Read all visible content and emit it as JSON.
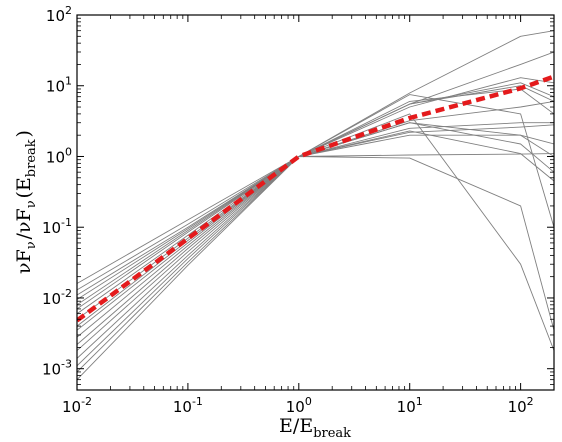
{
  "chart_data": {
    "type": "line",
    "xscale": "log",
    "yscale": "log",
    "xlim": [
      0.01,
      200
    ],
    "ylim": [
      0.0005,
      100
    ],
    "grid": false,
    "xlabel": "E/E_break",
    "ylabel": "νF_ν/νF_ν(E_break)",
    "x_ticks": [
      {
        "value": 0.01,
        "mantissa": "10",
        "exp": "-2"
      },
      {
        "value": 0.1,
        "mantissa": "10",
        "exp": "-1"
      },
      {
        "value": 1,
        "mantissa": "10",
        "exp": "0"
      },
      {
        "value": 10,
        "mantissa": "10",
        "exp": "1"
      },
      {
        "value": 100,
        "mantissa": "10",
        "exp": "2"
      }
    ],
    "y_ticks": [
      {
        "value": 0.001,
        "mantissa": "10",
        "exp": "-3"
      },
      {
        "value": 0.01,
        "mantissa": "10",
        "exp": "-2"
      },
      {
        "value": 0.1,
        "mantissa": "10",
        "exp": "-1"
      },
      {
        "value": 1,
        "mantissa": "10",
        "exp": "0"
      },
      {
        "value": 10,
        "mantissa": "10",
        "exp": "1"
      },
      {
        "value": 100,
        "mantissa": "10",
        "exp": "2"
      }
    ],
    "thin_line_color": "#808080",
    "series": [
      {
        "x": [
          0.01,
          0.1,
          1,
          10,
          100,
          200
        ],
        "y": [
          0.016,
          0.127,
          1,
          7.9,
          50,
          60
        ]
      },
      {
        "x": [
          0.01,
          0.1,
          1,
          10,
          100,
          200
        ],
        "y": [
          0.013,
          0.11,
          1,
          5.5,
          20,
          30
        ]
      },
      {
        "x": [
          0.01,
          0.1,
          1,
          10,
          100,
          200
        ],
        "y": [
          0.011,
          0.1,
          1,
          5,
          13,
          11
        ]
      },
      {
        "x": [
          0.01,
          0.1,
          1,
          10,
          100,
          200
        ],
        "y": [
          0.0095,
          0.095,
          1,
          5.5,
          11,
          7
        ]
      },
      {
        "x": [
          0.01,
          0.1,
          1,
          10,
          100,
          200
        ],
        "y": [
          0.008,
          0.09,
          1,
          5.5,
          10,
          6
        ]
      },
      {
        "x": [
          0.01,
          0.1,
          1,
          10,
          100,
          200
        ],
        "y": [
          0.007,
          0.085,
          1,
          6,
          9,
          4
        ]
      },
      {
        "x": [
          0.01,
          0.1,
          1,
          10,
          100,
          200
        ],
        "y": [
          0.006,
          0.077,
          1,
          7.5,
          4,
          0.1
        ]
      },
      {
        "x": [
          0.01,
          0.1,
          1,
          10,
          100,
          200
        ],
        "y": [
          0.005,
          0.07,
          1,
          3,
          2,
          1
        ]
      },
      {
        "x": [
          0.01,
          0.1,
          1,
          10,
          100,
          200
        ],
        "y": [
          0.004,
          0.065,
          1,
          3.2,
          5,
          6
        ]
      },
      {
        "x": [
          0.01,
          0.1,
          1,
          10,
          100,
          200
        ],
        "y": [
          0.0035,
          0.06,
          1,
          2.5,
          3,
          3
        ]
      },
      {
        "x": [
          0.01,
          0.1,
          1,
          10,
          100,
          200
        ],
        "y": [
          0.0028,
          0.055,
          1,
          2,
          2,
          1.5
        ]
      },
      {
        "x": [
          0.01,
          0.1,
          1,
          10,
          100,
          200
        ],
        "y": [
          0.0022,
          0.05,
          1,
          2.2,
          2.6,
          2.8
        ]
      },
      {
        "x": [
          0.01,
          0.1,
          1,
          10,
          100,
          200
        ],
        "y": [
          0.0018,
          0.045,
          1,
          1.05,
          1.08,
          1.1
        ]
      },
      {
        "x": [
          0.01,
          0.1,
          1,
          10,
          100,
          200
        ],
        "y": [
          0.0014,
          0.04,
          1,
          4,
          0.03,
          0.0018
        ]
      },
      {
        "x": [
          0.01,
          0.1,
          1,
          10,
          100,
          200
        ],
        "y": [
          0.0011,
          0.036,
          1,
          3,
          1.5,
          0.6
        ]
      },
      {
        "x": [
          0.01,
          0.1,
          1,
          10,
          100,
          200
        ],
        "y": [
          0.0009,
          0.032,
          1,
          0.95,
          0.2,
          0.0035
        ]
      },
      {
        "x": [
          0.01,
          0.1,
          1,
          10,
          100,
          200
        ],
        "y": [
          0.0007,
          0.029,
          1,
          2.3,
          1.1,
          0.45
        ]
      }
    ],
    "mean_line": {
      "color": "#e41a1c",
      "style": "dashed",
      "x": [
        0.01,
        0.1,
        1,
        10,
        100,
        200
      ],
      "y": [
        0.0048,
        0.069,
        1,
        3.5,
        9.2,
        13.5
      ]
    }
  }
}
